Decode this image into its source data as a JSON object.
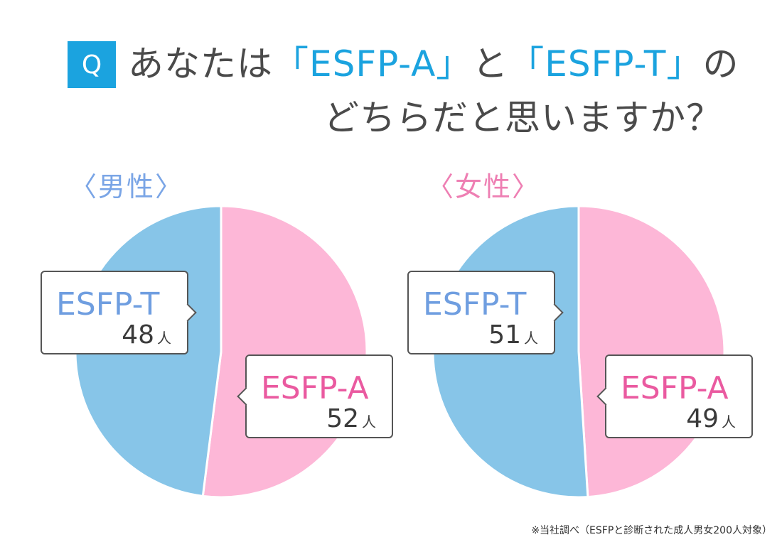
{
  "question": {
    "badge": "Q",
    "line1_pre": "あなたは",
    "option_a": "「ESFP-A」",
    "mid": "と",
    "option_t": "「ESFP-T」",
    "line1_post": "の",
    "line2": "どちらだと思いますか？"
  },
  "colors": {
    "accent": "#1ba3df",
    "pie_t": "#87c5e8",
    "pie_a": "#fdb7d7",
    "label_t": "#6f9ee0",
    "label_a": "#ea5aa0",
    "male_label": "#7aa5e6",
    "female_label": "#ee7fb3"
  },
  "unit": "人",
  "footnote": "※当社調べ（ESFPと診断された成人男女200人対象）",
  "chart_data": [
    {
      "type": "pie",
      "title": "〈男性〉",
      "categories": [
        "ESFP-T",
        "ESFP-A"
      ],
      "values": [
        48,
        52
      ],
      "total": 100,
      "display": {
        "t_count": "48",
        "a_count": "52"
      }
    },
    {
      "type": "pie",
      "title": "〈女性〉",
      "categories": [
        "ESFP-T",
        "ESFP-A"
      ],
      "values": [
        51,
        49
      ],
      "total": 100,
      "display": {
        "t_count": "51",
        "a_count": "49"
      }
    }
  ]
}
